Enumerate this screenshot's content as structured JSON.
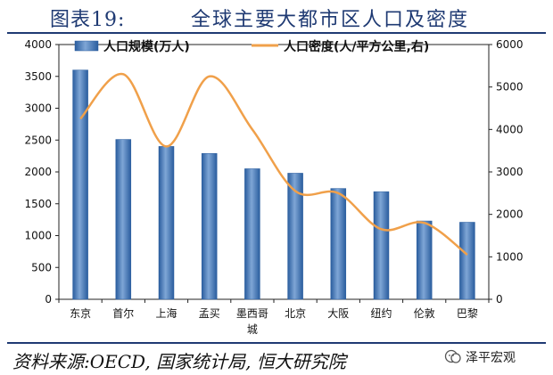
{
  "header": {
    "figure_label": "图表19:",
    "title": "全球主要大都市区人口及密度"
  },
  "footer": {
    "source": "资料来源:OECD, 国家统计局, 恒大研究院",
    "brand": "泽平宏观",
    "brand_icon": "wechat-icon"
  },
  "chart_data": {
    "type": "bar",
    "categories": [
      "东京",
      "首尔",
      "上海",
      "孟买",
      "墨西哥城",
      "北京",
      "大阪",
      "纽约",
      "伦敦",
      "巴黎"
    ],
    "series": [
      {
        "name": "人口规模(万人)",
        "type": "bar",
        "axis": "left",
        "color": "#3a6fb0",
        "values": [
          3600,
          2510,
          2400,
          2290,
          2050,
          1980,
          1740,
          1690,
          1230,
          1210
        ]
      },
      {
        "name": "人口密度(人/平方公里,右)",
        "type": "line",
        "axis": "right",
        "color": "#f0a04a",
        "values": [
          4250,
          5300,
          3600,
          5250,
          4000,
          2550,
          2500,
          1650,
          1800,
          1050
        ]
      }
    ],
    "y_left": {
      "min": 0,
      "max": 4000,
      "ticks": [
        0,
        500,
        1000,
        1500,
        2000,
        2500,
        3000,
        3500,
        4000
      ]
    },
    "y_right": {
      "min": 0,
      "max": 6000,
      "ticks": [
        0,
        1000,
        2000,
        3000,
        4000,
        5000,
        6000
      ]
    },
    "legend_position": "top",
    "grid": false
  }
}
